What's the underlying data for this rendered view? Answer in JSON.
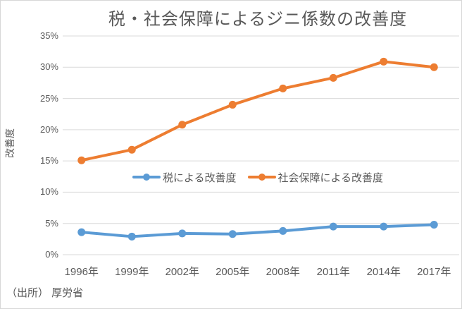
{
  "chart_data": {
    "type": "line",
    "title": "税・社会保障によるジニ係数の改善度",
    "categories": [
      "1996年",
      "1999年",
      "2002年",
      "2005年",
      "2008年",
      "2011年",
      "2014年",
      "2017年"
    ],
    "series": [
      {
        "name": "税による改善度",
        "color": "#5B9BD5",
        "values": [
          3.6,
          2.9,
          3.4,
          3.3,
          3.8,
          4.5,
          4.5,
          4.8
        ]
      },
      {
        "name": "社会保障による改善度",
        "color": "#ED7D31",
        "values": [
          15.1,
          16.8,
          20.8,
          24.0,
          26.6,
          28.3,
          30.9,
          30.0
        ]
      }
    ],
    "xlabel": "",
    "ylabel": "改善度",
    "ylim": [
      0,
      35
    ],
    "ytick_step": 5,
    "ytick_labels": [
      "0%",
      "5%",
      "10%",
      "15%",
      "20%",
      "25%",
      "30%",
      "35%"
    ],
    "grid": true,
    "gridline_color": "#D9D9D9",
    "legend_position": "inside-center",
    "text_color": "#595959"
  },
  "source_note": "（出所） 厚労省"
}
